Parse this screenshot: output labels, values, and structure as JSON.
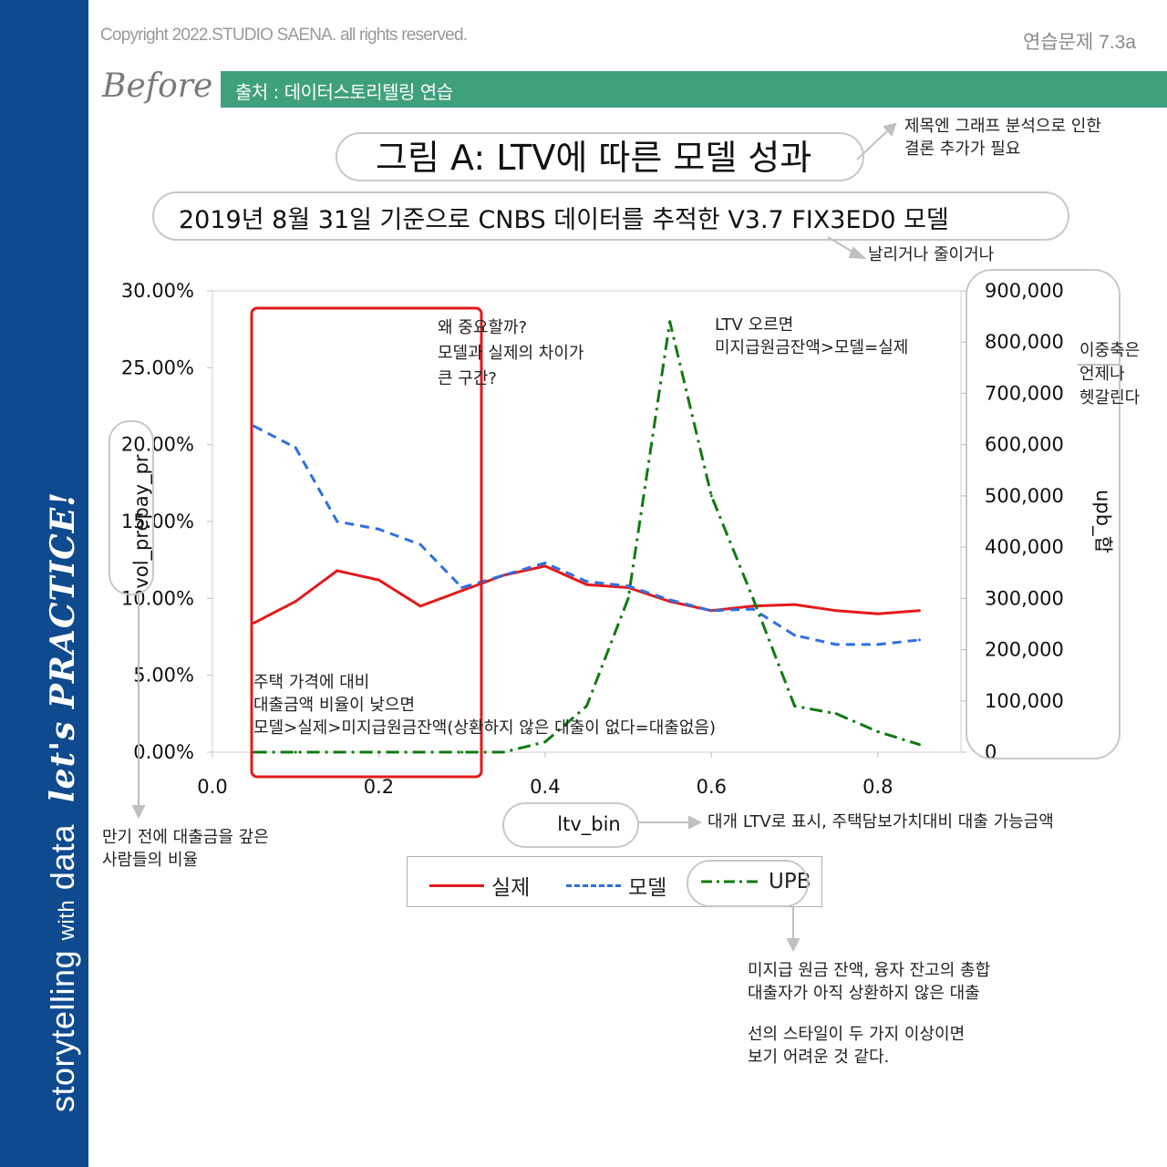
{
  "header": {
    "copyright": "Copyright 2022.STUDIO SAENA. all rights reserved.",
    "exercise_id": "연습문제 7.3a",
    "stage_label": "Before",
    "source_label": "출처 : 데이터스토리텔링 연습"
  },
  "sidebar": {
    "brand_main": "storytelling",
    "brand_with": "with",
    "brand_data": "data",
    "practice": "let's PRACTICE!"
  },
  "chart_data": {
    "type": "line",
    "title": "그림 A: LTV에 따른 모델 성과",
    "subtitle": "2019년 8월 31일 기준으로 CNBS 데이터를 추적한 V3.7 FIX3ED0 모델",
    "xlabel": "ltv_bin",
    "ylabel": "vol_prepay_pr",
    "y2label": "upb_합",
    "xlim": [
      0,
      0.9
    ],
    "ylim": [
      0,
      0.3
    ],
    "y2lim": [
      0,
      900000
    ],
    "x_ticks": [
      0.0,
      0.2,
      0.4,
      0.6,
      0.8
    ],
    "x_tick_labels": [
      "0.0",
      "0.2",
      "0.4",
      "0.6",
      "0.8"
    ],
    "y_ticks": [
      0,
      0.05,
      0.1,
      0.15,
      0.2,
      0.25,
      0.3
    ],
    "y_tick_labels": [
      "0.00%",
      "5.00%",
      "10.00%",
      "15.00%",
      "20.00%",
      "25.00%",
      "30.00%"
    ],
    "y2_ticks": [
      0,
      100000,
      200000,
      300000,
      400000,
      500000,
      600000,
      700000,
      800000,
      900000
    ],
    "y2_tick_labels": [
      "0",
      "100,000",
      "200,000",
      "300,000",
      "400,000",
      "500,000",
      "600,000",
      "700,000",
      "800,000",
      "900,000"
    ],
    "grid": "off",
    "legend_position": "bottom",
    "x": [
      0.05,
      0.1,
      0.15,
      0.2,
      0.25,
      0.3,
      0.35,
      0.4,
      0.45,
      0.5,
      0.55,
      0.6,
      0.65,
      0.7,
      0.75,
      0.8,
      0.85
    ],
    "series": [
      {
        "name": "실제",
        "axis": "left",
        "color": "#e31a1c",
        "style": "solid",
        "values": [
          0.084,
          0.098,
          0.118,
          0.112,
          0.095,
          0.105,
          0.115,
          0.121,
          0.109,
          0.107,
          0.098,
          0.092,
          0.095,
          0.096,
          0.092,
          0.09,
          0.092
        ]
      },
      {
        "name": "모델",
        "axis": "left",
        "color": "#2f6fe0",
        "style": "dashed",
        "values": [
          0.212,
          0.198,
          0.15,
          0.145,
          0.135,
          0.107,
          0.115,
          0.123,
          0.111,
          0.108,
          0.099,
          0.092,
          0.093,
          0.076,
          0.07,
          0.07,
          0.073
        ]
      },
      {
        "name": "UPB",
        "axis": "right",
        "color": "#117a11",
        "style": "dashdot",
        "values": [
          0,
          0,
          0,
          0,
          0,
          0,
          0,
          20000,
          90000,
          300000,
          840000,
          500000,
          300000,
          90000,
          75000,
          40000,
          15000
        ]
      }
    ]
  },
  "annotations": {
    "title_note": [
      "제목엔 그래프 분석으로 인한",
      "결론 추가가 필요"
    ],
    "subtitle_note": "날리거나 줄이거나",
    "dual_axis_note": [
      "이중축은",
      "언제나",
      "헷갈린다"
    ],
    "important_note": [
      "왜 중요할까?",
      "모델과 실제의 차이가",
      "큰 구간?"
    ],
    "ltv_up_note": [
      "LTV 오르면",
      "미지급원금잔액>모델=실제"
    ],
    "low_ltv_note": [
      "주택 가격에 대비",
      "대출금액 비율이 낮으면",
      "모델>실제>미지급원금잔액(상환하지 않은 대출이 없다=대출없음)"
    ],
    "prepay_note": [
      "만기 전에 대출금을 갚은",
      "사람들의 비율"
    ],
    "ltv_bin_note": "대개 LTV로 표시, 주택담보가치대비 대출 가능금액",
    "upb_note": [
      "미지급 원금 잔액, 융자 잔고의 총합",
      "대출자가 아직 상환하지 않은 대출"
    ],
    "style_note": [
      "선의 스타일이 두 가지 이상이면",
      "보기 어려운 것 같다."
    ]
  }
}
